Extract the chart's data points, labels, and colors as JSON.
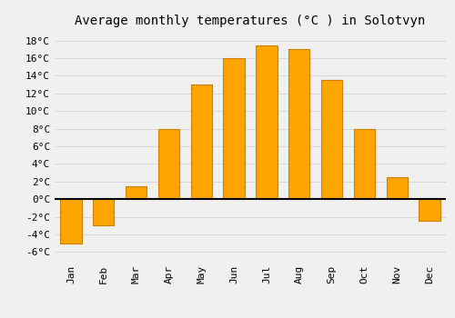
{
  "title": "Average monthly temperatures (°C ) in Solotvyn",
  "months": [
    "Jan",
    "Feb",
    "Mar",
    "Apr",
    "May",
    "Jun",
    "Jul",
    "Aug",
    "Sep",
    "Oct",
    "Nov",
    "Dec"
  ],
  "temperatures": [
    -5.0,
    -3.0,
    1.5,
    8.0,
    13.0,
    16.0,
    17.5,
    17.0,
    13.5,
    8.0,
    2.5,
    -2.5
  ],
  "bar_color": "#FFA500",
  "bar_edge_color": "#CC8000",
  "ylim": [
    -7,
    19
  ],
  "yticks": [
    -6,
    -4,
    -2,
    0,
    2,
    4,
    6,
    8,
    10,
    12,
    14,
    16,
    18
  ],
  "background_color": "#F0F0F0",
  "grid_color": "#CCCCCC",
  "title_fontsize": 10,
  "tick_fontsize": 8,
  "zero_line_color": "#000000",
  "bar_width": 0.65
}
